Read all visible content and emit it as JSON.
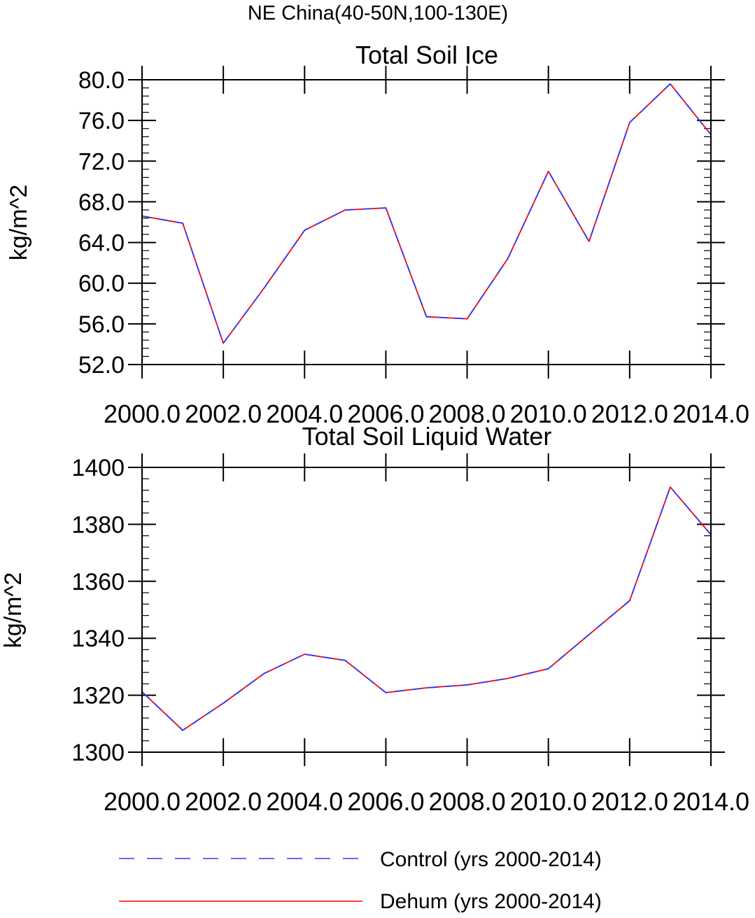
{
  "figure_title": "NE China(40-50N,100-130E)",
  "legend": {
    "entries": [
      {
        "label": "Control (yrs 2000-2014)",
        "color": "#3333ff",
        "style": "dashed"
      },
      {
        "label": "Dehum (yrs 2000-2014)",
        "color": "#ff0000",
        "style": "solid"
      }
    ]
  },
  "chart_data": [
    {
      "type": "line",
      "title": "Total Soil Ice",
      "xlabel": "",
      "ylabel": "kg/m^2",
      "x": [
        2000,
        2001,
        2002,
        2003,
        2004,
        2005,
        2006,
        2007,
        2008,
        2009,
        2010,
        2011,
        2012,
        2013,
        2014
      ],
      "xlim": [
        2000,
        2014
      ],
      "ylim": [
        52,
        80
      ],
      "xticks": [
        2000,
        2002,
        2004,
        2006,
        2008,
        2010,
        2012,
        2014
      ],
      "xtick_labels": [
        "2000.0",
        "2002.0",
        "2004.0",
        "2006.0",
        "2008.0",
        "2010.0",
        "2012.0",
        "2014.0"
      ],
      "yticks": [
        52,
        56,
        60,
        64,
        68,
        72,
        76,
        80
      ],
      "ytick_labels": [
        "52.0",
        "56.0",
        "60.0",
        "64.0",
        "68.0",
        "72.0",
        "76.0",
        "80.0"
      ],
      "series": [
        {
          "name": "Control (yrs 2000-2014)",
          "color": "#3333ff",
          "style": "dashed",
          "values": [
            66.6,
            65.9,
            54.1,
            59.5,
            65.2,
            67.2,
            67.4,
            56.7,
            56.5,
            62.4,
            71.0,
            64.1,
            75.8,
            79.6,
            74.6
          ]
        },
        {
          "name": "Dehum (yrs 2000-2014)",
          "color": "#ff0000",
          "style": "solid",
          "values": [
            66.6,
            65.9,
            54.1,
            59.5,
            65.2,
            67.2,
            67.4,
            56.7,
            56.5,
            62.4,
            71.0,
            64.1,
            75.8,
            79.6,
            74.6
          ]
        }
      ]
    },
    {
      "type": "line",
      "title": "Total Soil Liquid Water",
      "xlabel": "",
      "ylabel": "kg/m^2",
      "x": [
        2000,
        2001,
        2002,
        2003,
        2004,
        2005,
        2006,
        2007,
        2008,
        2009,
        2010,
        2011,
        2012,
        2013,
        2014
      ],
      "xlim": [
        2000,
        2014
      ],
      "ylim": [
        1300,
        1400
      ],
      "xticks": [
        2000,
        2002,
        2004,
        2006,
        2008,
        2010,
        2012,
        2014
      ],
      "xtick_labels": [
        "2000.0",
        "2002.0",
        "2004.0",
        "2006.0",
        "2008.0",
        "2010.0",
        "2012.0",
        "2014.0"
      ],
      "yticks": [
        1300,
        1320,
        1340,
        1360,
        1380,
        1400
      ],
      "ytick_labels": [
        "1300",
        "1320",
        "1340",
        "1360",
        "1380",
        "1400"
      ],
      "series": [
        {
          "name": "Control (yrs 2000-2014)",
          "color": "#3333ff",
          "style": "dashed",
          "values": [
            1321.2,
            1307.7,
            1317.2,
            1327.6,
            1334.4,
            1332.2,
            1320.9,
            1322.6,
            1323.6,
            1325.9,
            1329.3,
            1341.3,
            1353.2,
            1393.1,
            1376.4
          ]
        },
        {
          "name": "Dehum (yrs 2000-2014)",
          "color": "#ff0000",
          "style": "solid",
          "values": [
            1321.2,
            1307.7,
            1317.2,
            1327.6,
            1334.4,
            1332.2,
            1320.9,
            1322.6,
            1323.6,
            1325.9,
            1329.3,
            1341.3,
            1353.2,
            1393.1,
            1376.4
          ]
        }
      ]
    }
  ]
}
